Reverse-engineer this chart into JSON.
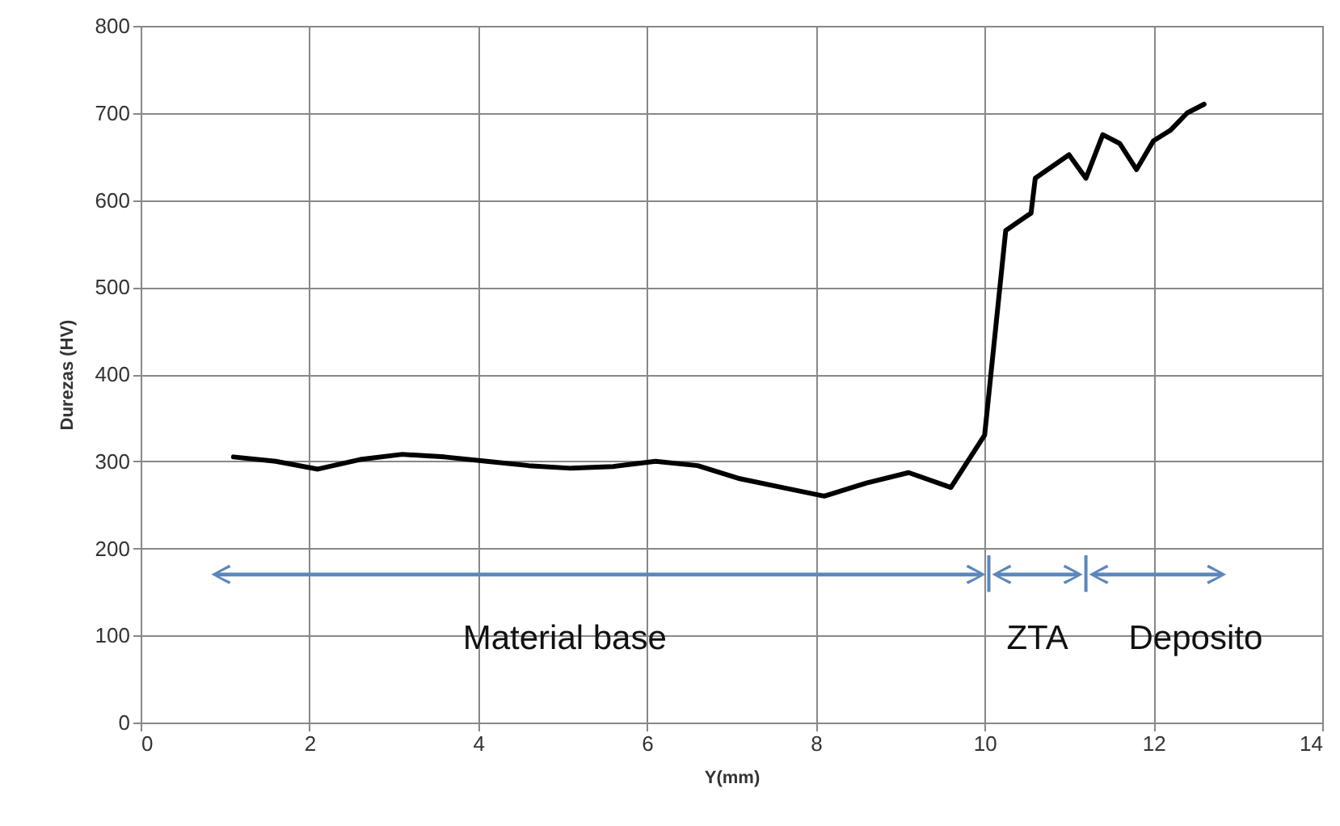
{
  "chart_data": {
    "type": "line",
    "xlabel": "Y(mm)",
    "ylabel": "Durezas (HV)",
    "x": [
      1.1,
      1.6,
      2.1,
      2.6,
      3.1,
      3.6,
      4.1,
      4.6,
      5.1,
      5.6,
      6.1,
      6.6,
      7.1,
      7.6,
      8.1,
      8.6,
      9.1,
      9.6,
      10.0,
      10.25,
      10.55,
      10.6,
      11.0,
      11.2,
      11.4,
      11.6,
      11.8,
      12.0,
      12.2,
      12.4,
      12.6
    ],
    "series": [
      {
        "color": "#000000",
        "values": [
          305,
          300,
          291,
          302,
          308,
          305,
          300,
          295,
          292,
          294,
          300,
          295,
          280,
          270,
          260,
          275,
          287,
          270,
          330,
          565,
          585,
          625,
          652,
          625,
          675,
          665,
          635,
          668,
          680,
          700,
          710
        ]
      }
    ],
    "xlim": [
      0,
      14
    ],
    "xticks": [
      0,
      2,
      4,
      6,
      8,
      10,
      12,
      14
    ],
    "ylim": [
      0,
      800
    ],
    "yticks": [
      0,
      100,
      200,
      300,
      400,
      500,
      600,
      700,
      800
    ],
    "grid": true,
    "marker": "none",
    "line_style": "solid",
    "annotations": [
      "Material base",
      "ZTA",
      "Deposito"
    ]
  }
}
